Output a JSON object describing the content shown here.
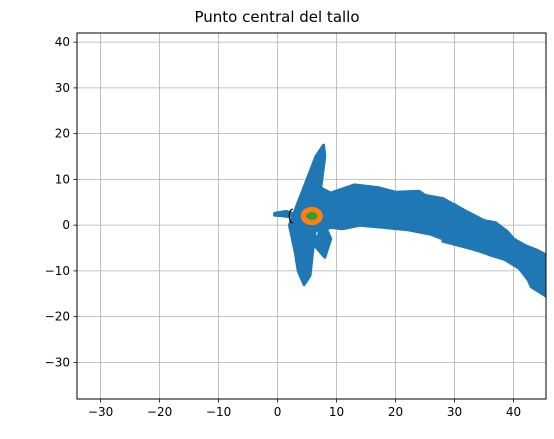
{
  "chart_data": {
    "type": "scatter",
    "title": "Punto central del tallo",
    "xlabel": "",
    "ylabel": "",
    "xlim": [
      -34,
      45.5
    ],
    "ylim": [
      -38,
      42
    ],
    "xticks": [
      -30,
      -20,
      -10,
      0,
      10,
      20,
      30,
      40
    ],
    "yticks": [
      -30,
      -20,
      -10,
      0,
      10,
      20,
      30,
      40
    ],
    "xtick_labels": [
      "−30",
      "−20",
      "−10",
      "0",
      "10",
      "20",
      "30",
      "40"
    ],
    "ytick_labels": [
      "−30",
      "−20",
      "−10",
      "0",
      "10",
      "20",
      "30",
      "40"
    ],
    "grid": true,
    "legend": "none",
    "series": [
      {
        "color": "#1f77b4",
        "regions": [
          {
            "shape": "polygon",
            "points": [
              [
                2.0,
                0
              ],
              [
                3.0,
                -6
              ],
              [
                3.5,
                -10
              ],
              [
                4.5,
                -13
              ],
              [
                5.5,
                -11
              ],
              [
                6.0,
                -5
              ],
              [
                6.5,
                0
              ],
              [
                7.0,
                5
              ],
              [
                7.5,
                10
              ],
              [
                8.0,
                15
              ],
              [
                7.8,
                17.5
              ],
              [
                6.5,
                15
              ],
              [
                5.0,
                10
              ],
              [
                3.5,
                5
              ]
            ]
          },
          {
            "shape": "polygon",
            "points": [
              [
                -0.5,
                2.6
              ],
              [
                -0.5,
                2.2
              ],
              [
                2.0,
                1.9
              ],
              [
                2.5,
                2.6
              ],
              [
                1.5,
                3.0
              ]
            ]
          },
          {
            "shape": "polygon",
            "points": [
              [
                5.0,
                5
              ],
              [
                6.0,
                9
              ],
              [
                9.0,
                7
              ],
              [
                13.0,
                8.8
              ],
              [
                17.0,
                8.2
              ],
              [
                20.0,
                7.2
              ],
              [
                24.0,
                7.4
              ],
              [
                25.0,
                6.5
              ],
              [
                28.0,
                5.8
              ],
              [
                32.0,
                3.0
              ],
              [
                35.0,
                1.0
              ],
              [
                37.0,
                0.5
              ],
              [
                39.0,
                -1.5
              ],
              [
                40.0,
                -3.0
              ],
              [
                42.0,
                -4.5
              ],
              [
                44.0,
                -5.5
              ],
              [
                45.5,
                -6.5
              ],
              [
                45.5,
                -15.5
              ],
              [
                43.0,
                -13.5
              ],
              [
                42.5,
                -12.0
              ],
              [
                41.0,
                -9.5
              ],
              [
                38.5,
                -7.5
              ],
              [
                36.0,
                -6.5
              ],
              [
                34.0,
                -5.5
              ],
              [
                31.0,
                -4.5
              ],
              [
                28.0,
                -3.0
              ],
              [
                26.0,
                -2.0
              ],
              [
                22.0,
                -1.0
              ],
              [
                18.0,
                -0.5
              ],
              [
                14.0,
                0.0
              ],
              [
                11.0,
                -0.8
              ],
              [
                9.0,
                -0.5
              ],
              [
                7.0,
                -1.5
              ],
              [
                6.0,
                0.5
              ]
            ]
          },
          {
            "shape": "polygon",
            "points": [
              [
                8.0,
                5.0
              ],
              [
                13.0,
                6.5
              ],
              [
                16.0,
                4.5
              ],
              [
                12.0,
                3.0
              ],
              [
                9.0,
                3.8
              ]
            ]
          },
          {
            "shape": "polygon",
            "points": [
              [
                14.0,
                5.5
              ],
              [
                18.0,
                7.0
              ],
              [
                22.0,
                6.0
              ],
              [
                25.0,
                4.5
              ],
              [
                23.0,
                4.0
              ],
              [
                20.0,
                5.0
              ],
              [
                16.0,
                4.5
              ]
            ]
          },
          {
            "shape": "polygon",
            "points": [
              [
                26.0,
                3.5
              ],
              [
                30.0,
                4.5
              ],
              [
                32.0,
                2.5
              ],
              [
                34.0,
                1.0
              ],
              [
                31.0,
                0.0
              ],
              [
                28.0,
                1.0
              ]
            ]
          },
          {
            "shape": "polygon",
            "points": [
              [
                28.0,
                -3.5
              ],
              [
                34.0,
                -3.0
              ],
              [
                38.0,
                -5.0
              ],
              [
                41.0,
                -7.0
              ],
              [
                37.0,
                -6.8
              ],
              [
                33.0,
                -5.2
              ]
            ]
          },
          {
            "shape": "polygon",
            "points": [
              [
                40.0,
                -5.5
              ],
              [
                42.0,
                -6.0
              ],
              [
                44.0,
                -6.5
              ],
              [
                44.5,
                -8.0
              ],
              [
                43.0,
                -9.0
              ],
              [
                41.5,
                -8.0
              ]
            ]
          },
          {
            "shape": "polygon",
            "points": [
              [
                6.0,
                -4.0
              ],
              [
                8.0,
                -7.0
              ],
              [
                9.0,
                -3.0
              ],
              [
                8.0,
                0.0
              ]
            ]
          }
        ]
      },
      {
        "color": "#ff7f0e",
        "regions": [
          {
            "shape": "ring",
            "cx": 5.8,
            "cy": 2.0,
            "rx": 1.4,
            "ry": 1.4,
            "width": 2.5
          }
        ]
      },
      {
        "color": "#2ca02c",
        "regions": [
          {
            "shape": "polygon",
            "points": [
              [
                5.3,
                2.0
              ],
              [
                5.6,
                2.6
              ],
              [
                6.3,
                2.4
              ],
              [
                6.4,
                1.6
              ],
              [
                5.8,
                1.4
              ]
            ]
          }
        ]
      },
      {
        "color": "#000000",
        "regions": [
          {
            "shape": "arc",
            "cx": 2.4,
            "cy": 2.0,
            "rx": 0.6,
            "ry": 1.5
          }
        ]
      }
    ]
  }
}
